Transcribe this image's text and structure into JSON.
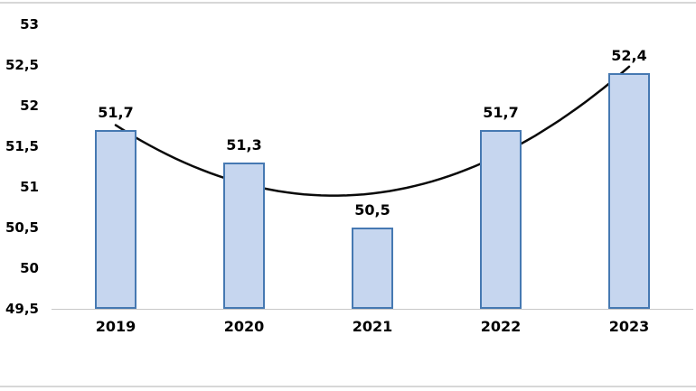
{
  "chart_data": {
    "type": "bar",
    "title": "",
    "xlabel": "",
    "ylabel": "",
    "categories": [
      "2019",
      "2020",
      "2021",
      "2022",
      "2023"
    ],
    "values": [
      51.7,
      51.3,
      50.5,
      51.7,
      52.4
    ],
    "value_labels": [
      "51,7",
      "51,3",
      "50,5",
      "51,7",
      "52,4"
    ],
    "ylim": [
      49.5,
      53
    ],
    "yticks": [
      53,
      52.5,
      52,
      51.5,
      51,
      50.5,
      50,
      49.5
    ],
    "ytick_labels": [
      "53",
      "52,5",
      "52",
      "51,5",
      "51",
      "50,5",
      "50",
      "49,5"
    ],
    "grid": false,
    "legend": false,
    "decimal_separator": ",",
    "trendline": {
      "type": "polynomial",
      "order": 2
    },
    "colors": {
      "bar_fill": "#C6D6EF",
      "bar_border": "#4679B2",
      "trendline": "#0a0a0a",
      "axis_line": "#C8C8C8",
      "frame_line": "#D7D7D7"
    }
  }
}
